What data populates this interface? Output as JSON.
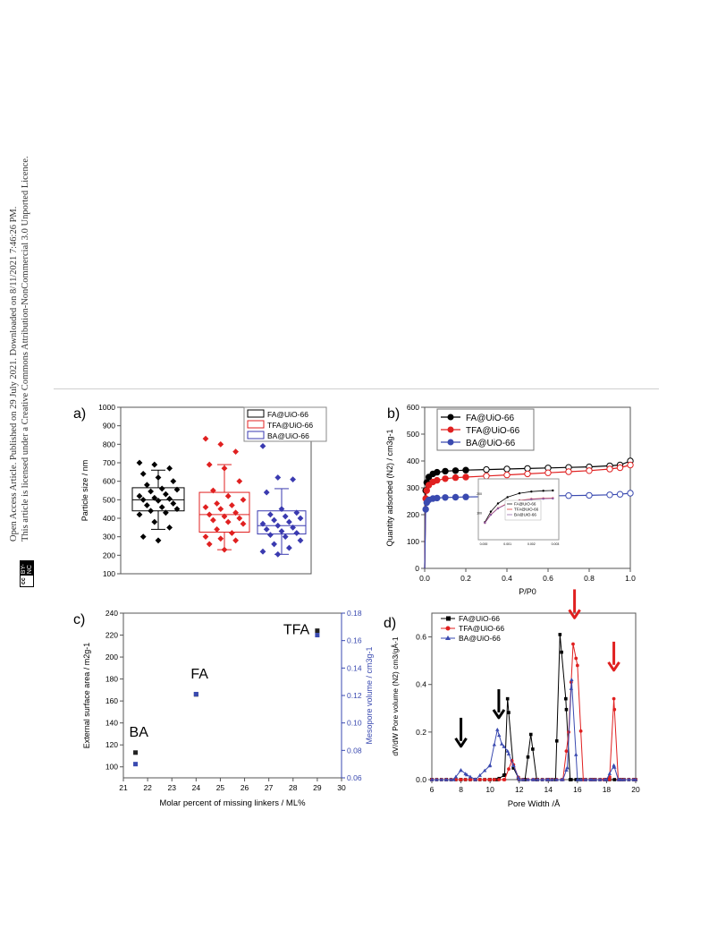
{
  "watermark": {
    "line1": "Open Access Article. Published on 29 July 2021. Downloaded on 8/11/2021 7:46:26 PM.",
    "line2": "This article is licensed under a Creative Commons Attribution-NonCommercial 3.0 Unported Licence.",
    "badge_cc": "cc",
    "badge_by": "BY-NC"
  },
  "chart_data": [
    {
      "panel": "a)",
      "type": "box",
      "ylabel": "Particle size / nm",
      "ylim": [
        100,
        1000
      ],
      "yticks": [
        100,
        200,
        300,
        400,
        500,
        600,
        700,
        800,
        900,
        1000
      ],
      "legend_position": "top-right",
      "series": [
        {
          "name": "FA@UiO-66",
          "color": "#000000",
          "q1": 440,
          "median": 500,
          "q3": 565,
          "whisker_low": 340,
          "whisker_high": 660,
          "points": [
            700,
            690,
            670,
            640,
            620,
            600,
            580,
            560,
            555,
            545,
            530,
            520,
            510,
            505,
            500,
            495,
            480,
            470,
            460,
            450,
            440,
            430,
            420,
            380,
            350,
            300,
            280
          ]
        },
        {
          "name": "TFA@UiO-66",
          "color": "#e02020",
          "q1": 325,
          "median": 420,
          "q3": 540,
          "whisker_low": 230,
          "whisker_high": 690,
          "points": [
            830,
            800,
            760,
            690,
            670,
            600,
            550,
            520,
            500,
            480,
            470,
            460,
            450,
            430,
            420,
            410,
            400,
            390,
            380,
            370,
            340,
            320,
            300,
            290,
            280,
            260,
            230
          ]
        },
        {
          "name": "BA@UiO-66",
          "color": "#3a3ab0",
          "q1": 315,
          "median": 360,
          "q3": 440,
          "whisker_low": 205,
          "whisker_high": 560,
          "points": [
            790,
            620,
            610,
            540,
            450,
            430,
            420,
            410,
            400,
            390,
            380,
            370,
            360,
            350,
            340,
            330,
            320,
            310,
            300,
            280,
            260,
            240,
            220,
            205
          ]
        }
      ]
    },
    {
      "panel": "b)",
      "type": "line",
      "xlabel": "P/P0",
      "ylabel": "Quantity adsorbed (N2) / cm3g-1",
      "xlim": [
        0,
        1.0
      ],
      "ylim": [
        0,
        600
      ],
      "xticks": [
        0.0,
        0.2,
        0.4,
        0.6,
        0.8,
        1.0
      ],
      "yticks": [
        0,
        100,
        200,
        300,
        400,
        500,
        600
      ],
      "legend_position": "top-left",
      "series": [
        {
          "name": "FA@UiO-66",
          "color": "#000000",
          "x": [
            0.0,
            0.005,
            0.01,
            0.02,
            0.04,
            0.06,
            0.1,
            0.15,
            0.2,
            0.3,
            0.4,
            0.5,
            0.6,
            0.7,
            0.8,
            0.9,
            0.95,
            1.0
          ],
          "y": [
            0,
            290,
            320,
            340,
            352,
            358,
            362,
            364,
            366,
            368,
            370,
            372,
            374,
            376,
            378,
            382,
            385,
            400
          ]
        },
        {
          "name": "TFA@UiO-66",
          "color": "#e02020",
          "x": [
            0.0,
            0.005,
            0.01,
            0.02,
            0.04,
            0.06,
            0.1,
            0.15,
            0.2,
            0.3,
            0.4,
            0.5,
            0.6,
            0.7,
            0.8,
            0.9,
            0.95,
            1.0
          ],
          "y": [
            0,
            260,
            290,
            310,
            322,
            328,
            334,
            338,
            340,
            344,
            348,
            352,
            356,
            360,
            364,
            370,
            375,
            385
          ]
        },
        {
          "name": "BA@UiO-66",
          "color": "#3a4ab0",
          "x": [
            0.0,
            0.005,
            0.01,
            0.02,
            0.04,
            0.06,
            0.1,
            0.15,
            0.2,
            0.3,
            0.4,
            0.5,
            0.6,
            0.7,
            0.8,
            0.9,
            0.95,
            1.0
          ],
          "y": [
            0,
            220,
            245,
            255,
            260,
            262,
            264,
            265,
            266,
            267,
            268,
            269,
            270,
            271,
            272,
            274,
            276,
            280
          ]
        }
      ],
      "inset": {
        "xticks": [
          "0.000",
          "0.001",
          "0.002",
          "0.003"
        ],
        "yticks": [
          "100",
          "200"
        ],
        "legend": [
          "FA@UiO-66",
          "TFA@UiO-66",
          "BA@UiO-66"
        ]
      }
    },
    {
      "panel": "c)",
      "type": "scatter",
      "xlabel": "Molar percent of missing linkers / ML%",
      "ylabel": "External surface area / m2g-1",
      "y2label": "Mesopore volume / cm3g-1",
      "xlim": [
        21,
        30
      ],
      "ylim": [
        90,
        240
      ],
      "y2lim": [
        0.06,
        0.18
      ],
      "xticks": [
        21,
        22,
        23,
        24,
        25,
        26,
        27,
        28,
        29,
        30
      ],
      "yticks": [
        100,
        120,
        140,
        160,
        180,
        200,
        220,
        240
      ],
      "y2ticks": [
        0.06,
        0.08,
        0.1,
        0.12,
        0.14,
        0.16,
        0.18
      ],
      "labels": [
        {
          "text": "BA",
          "x": 21.5
        },
        {
          "text": "FA",
          "x": 24.0
        },
        {
          "text": "TFA",
          "x": 29.0
        }
      ],
      "series": [
        {
          "name": "External surface area",
          "color": "#222222",
          "x": [
            21.5,
            24.0,
            29.0
          ],
          "y": [
            113,
            166,
            224
          ]
        },
        {
          "name": "Mesopore volume",
          "color": "#3a4ab0",
          "x": [
            21.5,
            24.0,
            29.0
          ],
          "y2": [
            0.07,
            0.121,
            0.164
          ]
        }
      ]
    },
    {
      "panel": "d)",
      "type": "line",
      "xlabel": "Pore Width /Å",
      "ylabel": "dV/dW Pore volume (N2) cm3/gÅ-1",
      "xlim": [
        6,
        20
      ],
      "ylim": [
        0,
        0.7
      ],
      "xticks": [
        6,
        8,
        10,
        12,
        14,
        16,
        18,
        20
      ],
      "yticks": [
        0.0,
        0.2,
        0.4,
        0.6
      ],
      "legend_position": "top-left",
      "series": [
        {
          "name": "FA@UiO-66",
          "color": "#000000",
          "x": [
            6,
            7,
            8,
            9,
            10,
            10.5,
            11,
            11.2,
            11.6,
            12,
            12.4,
            12.8,
            13.2,
            14,
            14.5,
            14.8,
            15.2,
            15.5,
            16,
            17,
            18,
            19,
            20
          ],
          "y": [
            0,
            0,
            0,
            0,
            0,
            0,
            0.02,
            0.34,
            0.05,
            0,
            0,
            0.19,
            0,
            0,
            0,
            0.61,
            0.34,
            0,
            0,
            0,
            0,
            0,
            0
          ]
        },
        {
          "name": "TFA@UiO-66",
          "color": "#e02020",
          "x": [
            6,
            7,
            8,
            9,
            10,
            11,
            11.5,
            12,
            13,
            14,
            15,
            15.4,
            15.7,
            16,
            16.4,
            17,
            17.8,
            18.2,
            18.5,
            18.8,
            19,
            20
          ],
          "y": [
            0,
            0,
            0,
            0,
            0,
            0,
            0.08,
            0,
            0,
            0,
            0,
            0.2,
            0.57,
            0.48,
            0,
            0,
            0,
            0,
            0.34,
            0,
            0,
            0
          ]
        },
        {
          "name": "BA@UiO-66",
          "color": "#3a4ab0",
          "x": [
            6,
            7,
            7.5,
            8,
            8.4,
            9,
            10,
            10.5,
            10.8,
            11.2,
            11.6,
            12,
            13,
            14,
            15,
            15.3,
            15.6,
            16,
            17,
            18,
            18.5,
            18.8,
            19,
            20
          ],
          "y": [
            0,
            0,
            0,
            0.04,
            0.02,
            0,
            0.06,
            0.21,
            0.15,
            0.12,
            0.06,
            0,
            0,
            0,
            0,
            0.05,
            0.42,
            0,
            0,
            0,
            0.06,
            0,
            0,
            0
          ]
        }
      ],
      "arrows": [
        {
          "x": 8.0,
          "color": "#000000"
        },
        {
          "x": 10.6,
          "color": "#000000"
        },
        {
          "x": 15.8,
          "color": "#e02020"
        },
        {
          "x": 18.5,
          "color": "#e02020"
        }
      ]
    }
  ]
}
